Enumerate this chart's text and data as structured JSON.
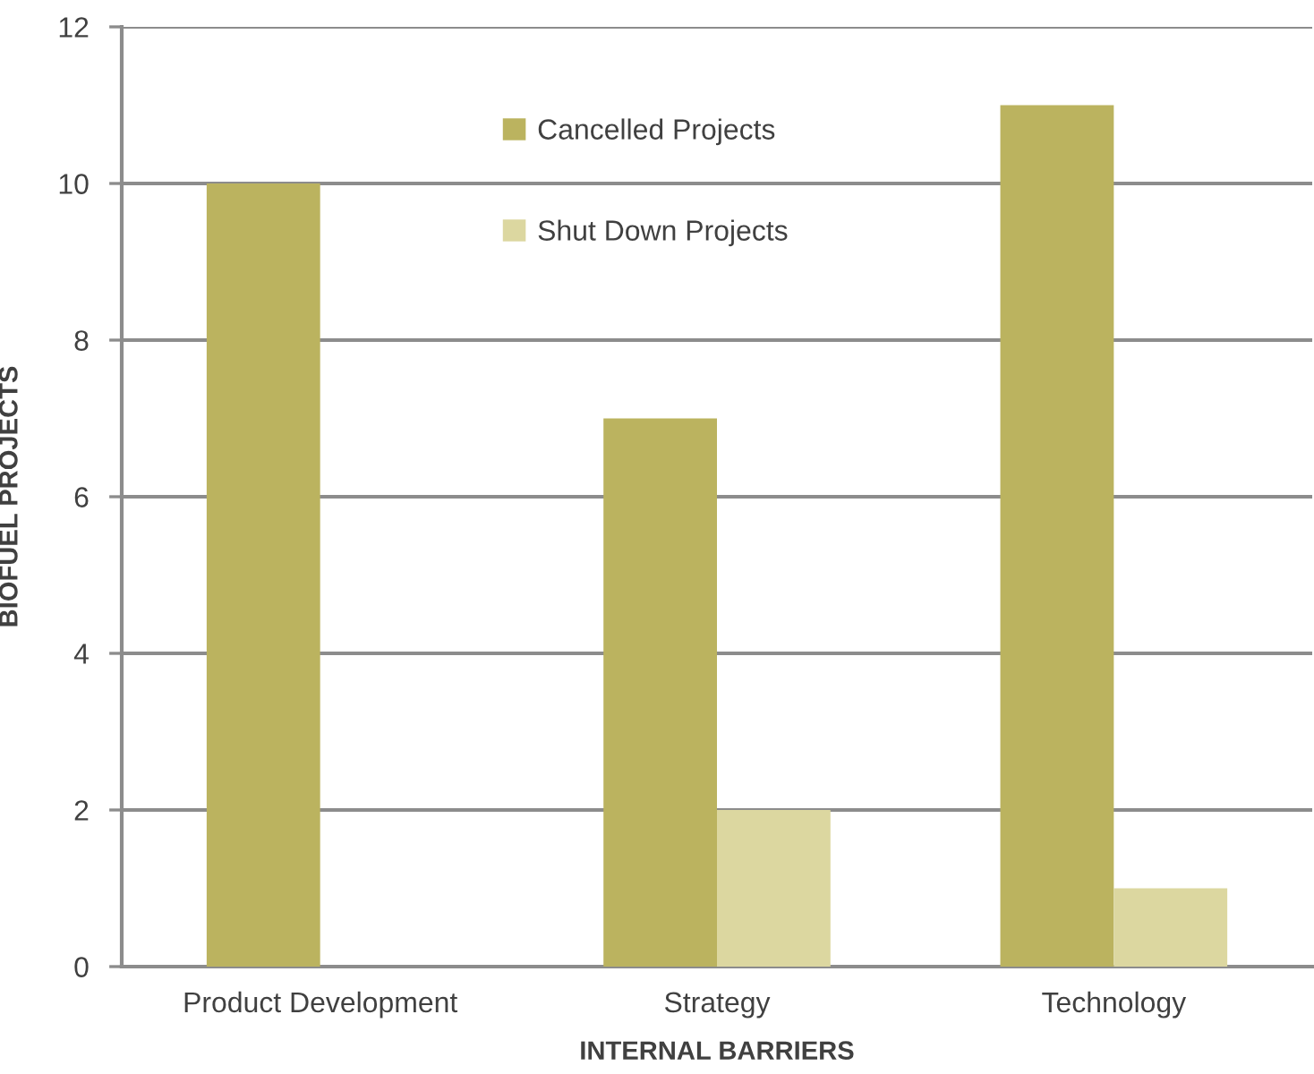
{
  "chart_data": {
    "type": "bar",
    "xlabel": "INTERNAL BARRIERS",
    "ylabel": "BIOFUEL PROJECTS",
    "categories": [
      "Product Development",
      "Strategy",
      "Technology"
    ],
    "series": [
      {
        "name": "Cancelled Projects",
        "color": "#bbb35f",
        "values": [
          10,
          7,
          11
        ]
      },
      {
        "name": "Shut Down Projects",
        "color": "#dcd7a0",
        "values": [
          0,
          2,
          1
        ]
      }
    ],
    "ylim": [
      0,
      12
    ],
    "yticks": [
      0,
      2,
      4,
      6,
      8,
      10,
      12
    ],
    "grid": "y",
    "legend": "top"
  }
}
